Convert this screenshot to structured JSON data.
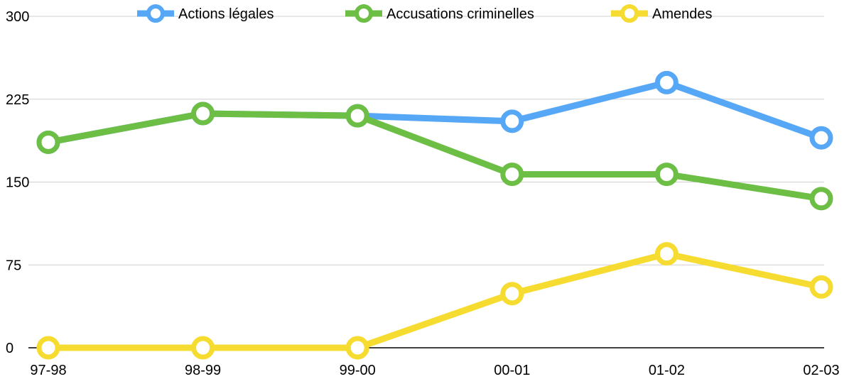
{
  "chart_data": {
    "type": "line",
    "title": "",
    "xlabel": "",
    "ylabel": "",
    "categories": [
      "97-98",
      "98-99",
      "99-00",
      "00-01",
      "01-02",
      "02-03"
    ],
    "yticks": [
      "0",
      "75",
      "150",
      "225",
      "300"
    ],
    "ylim": [
      0,
      300
    ],
    "grid": true,
    "legend_position": "top",
    "series": [
      {
        "name": "Actions légales",
        "color": "#56A7F5",
        "values": [
          186,
          212,
          210,
          205,
          240,
          190
        ]
      },
      {
        "name": "Accusations criminelles",
        "color": "#6DBE45",
        "values": [
          186,
          212,
          210,
          157,
          157,
          135
        ]
      },
      {
        "name": "Amendes",
        "color": "#F6DC30",
        "values": [
          0,
          0,
          0,
          49,
          85,
          55
        ]
      }
    ]
  }
}
